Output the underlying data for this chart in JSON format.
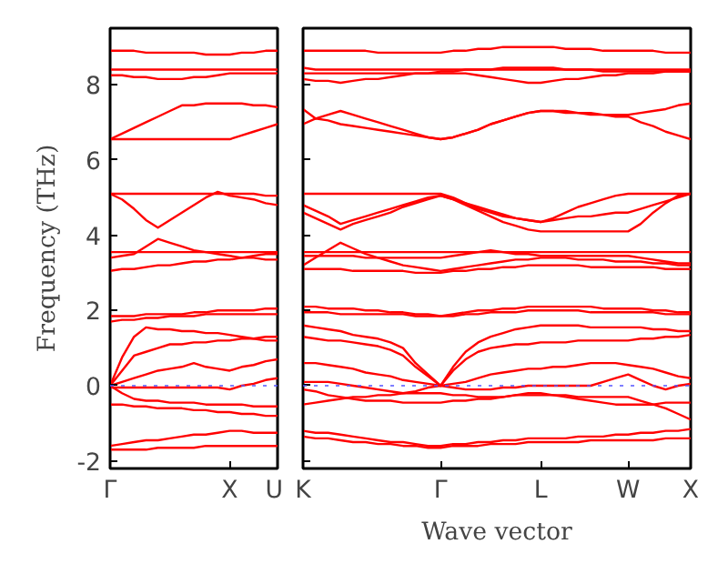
{
  "chart_data": [
    {
      "type": "line",
      "ylabel": "Frequency (THz)",
      "categories": [
        "Γ",
        null,
        null,
        null,
        null,
        null,
        null,
        null,
        null,
        null,
        "X",
        null,
        null,
        null,
        "U"
      ],
      "ylim": [
        -2.2,
        9.5
      ],
      "yticks": [
        -2,
        0,
        2,
        4,
        6,
        8
      ],
      "line_style": "solid",
      "ref_lines": [
        {
          "axis": "y",
          "value": 0,
          "color": "#5555ff",
          "line_style": "dotted"
        }
      ],
      "series": [
        {
          "color": "#ff0000",
          "values": [
            8.9,
            8.9,
            8.9,
            8.85,
            8.85,
            8.85,
            8.85,
            8.85,
            8.8,
            8.8,
            8.8,
            8.85,
            8.85,
            8.9,
            8.9
          ]
        },
        {
          "color": "#ff0000",
          "values": [
            8.4,
            8.4,
            8.4,
            8.4,
            8.4,
            8.4,
            8.4,
            8.4,
            8.4,
            8.4,
            8.4,
            8.4,
            8.4,
            8.4,
            8.4
          ]
        },
        {
          "color": "#ff0000",
          "values": [
            8.25,
            8.25,
            8.2,
            8.2,
            8.15,
            8.15,
            8.15,
            8.2,
            8.2,
            8.25,
            8.3,
            8.3,
            8.3,
            8.3,
            8.3
          ]
        },
        {
          "color": "#ff0000",
          "values": [
            6.55,
            6.7,
            6.85,
            7.0,
            7.15,
            7.3,
            7.45,
            7.45,
            7.5,
            7.5,
            7.5,
            7.5,
            7.45,
            7.45,
            7.4
          ]
        },
        {
          "color": "#ff0000",
          "values": [
            6.55,
            6.55,
            6.55,
            6.55,
            6.55,
            6.55,
            6.55,
            6.55,
            6.55,
            6.55,
            6.55,
            6.65,
            6.75,
            6.85,
            6.95
          ]
        },
        {
          "color": "#ff0000",
          "values": [
            5.1,
            5.1,
            5.1,
            5.1,
            5.1,
            5.1,
            5.1,
            5.1,
            5.1,
            5.1,
            5.1,
            5.1,
            5.1,
            5.05,
            5.05
          ]
        },
        {
          "color": "#ff0000",
          "values": [
            5.1,
            4.95,
            4.7,
            4.4,
            4.2,
            4.4,
            4.6,
            4.8,
            5.0,
            5.15,
            5.05,
            5.0,
            4.95,
            4.85,
            4.8
          ]
        },
        {
          "color": "#ff0000",
          "values": [
            3.55,
            3.55,
            3.55,
            3.55,
            3.55,
            3.55,
            3.55,
            3.55,
            3.55,
            3.55,
            3.55,
            3.55,
            3.55,
            3.55,
            3.55
          ]
        },
        {
          "color": "#ff0000",
          "values": [
            3.4,
            3.45,
            3.5,
            3.7,
            3.9,
            3.8,
            3.7,
            3.6,
            3.55,
            3.5,
            3.45,
            3.4,
            3.4,
            3.35,
            3.35
          ]
        },
        {
          "color": "#ff0000",
          "values": [
            3.05,
            3.1,
            3.1,
            3.15,
            3.2,
            3.2,
            3.25,
            3.3,
            3.3,
            3.35,
            3.35,
            3.4,
            3.45,
            3.5,
            3.5
          ]
        },
        {
          "color": "#ff0000",
          "values": [
            1.7,
            1.75,
            1.75,
            1.8,
            1.8,
            1.85,
            1.85,
            1.85,
            1.9,
            1.9,
            1.9,
            1.9,
            1.9,
            1.9,
            1.9
          ]
        },
        {
          "color": "#ff0000",
          "values": [
            1.85,
            1.85,
            1.85,
            1.9,
            1.9,
            1.9,
            1.9,
            1.95,
            1.95,
            2.0,
            2.0,
            2.0,
            2.0,
            2.05,
            2.05
          ]
        },
        {
          "color": "#ff0000",
          "values": [
            0,
            0.75,
            1.3,
            1.55,
            1.5,
            1.5,
            1.45,
            1.45,
            1.4,
            1.4,
            1.35,
            1.3,
            1.25,
            1.2,
            1.2
          ]
        },
        {
          "color": "#ff0000",
          "values": [
            0,
            0.4,
            0.8,
            0.9,
            1.0,
            1.1,
            1.1,
            1.15,
            1.15,
            1.2,
            1.2,
            1.25,
            1.25,
            1.3,
            1.3
          ]
        },
        {
          "color": "#ff0000",
          "values": [
            0,
            0.1,
            0.2,
            0.3,
            0.4,
            0.45,
            0.5,
            0.6,
            0.5,
            0.45,
            0.4,
            0.5,
            0.55,
            0.65,
            0.7
          ]
        },
        {
          "color": "#ff0000",
          "values": [
            -0.05,
            -0.05,
            -0.05,
            -0.05,
            -0.05,
            -0.05,
            -0.05,
            -0.05,
            -0.05,
            -0.05,
            -0.1,
            0,
            0.05,
            0.15,
            0.2
          ]
        },
        {
          "color": "#ff0000",
          "values": [
            0,
            -0.2,
            -0.35,
            -0.4,
            -0.4,
            -0.45,
            -0.45,
            -0.45,
            -0.5,
            -0.5,
            -0.5,
            -0.5,
            -0.55,
            -0.55,
            -0.55
          ]
        },
        {
          "color": "#ff0000",
          "values": [
            -0.5,
            -0.5,
            -0.55,
            -0.55,
            -0.6,
            -0.6,
            -0.6,
            -0.65,
            -0.65,
            -0.7,
            -0.7,
            -0.75,
            -0.75,
            -0.8,
            -0.8
          ]
        },
        {
          "color": "#ff0000",
          "values": [
            -1.6,
            -1.55,
            -1.5,
            -1.45,
            -1.45,
            -1.4,
            -1.35,
            -1.3,
            -1.3,
            -1.25,
            -1.2,
            -1.2,
            -1.25,
            -1.25,
            -1.25
          ]
        },
        {
          "color": "#ff0000",
          "values": [
            -1.7,
            -1.7,
            -1.7,
            -1.7,
            -1.65,
            -1.65,
            -1.65,
            -1.65,
            -1.6,
            -1.6,
            -1.6,
            -1.6,
            -1.6,
            -1.6,
            -1.6
          ]
        }
      ]
    },
    {
      "type": "line",
      "xlabel": "Wave vector",
      "categories": [
        "K",
        null,
        null,
        null,
        null,
        null,
        null,
        null,
        null,
        null,
        null,
        "Γ",
        null,
        null,
        null,
        null,
        null,
        null,
        null,
        "L",
        null,
        null,
        null,
        null,
        null,
        null,
        "W",
        null,
        null,
        null,
        null,
        "X"
      ],
      "ylim": [
        -2.2,
        9.5
      ],
      "yticks": [
        -2,
        0,
        2,
        4,
        6,
        8
      ],
      "tick_labels": "x",
      "line_style": "solid",
      "ref_lines": [
        {
          "axis": "y",
          "value": 0,
          "color": "#5555ff",
          "line_style": "dotted"
        }
      ],
      "series": [
        {
          "color": "#ff0000",
          "values": [
            8.9,
            8.9,
            8.9,
            8.9,
            8.9,
            8.9,
            8.85,
            8.85,
            8.85,
            8.85,
            8.85,
            8.85,
            8.9,
            8.9,
            8.95,
            8.95,
            9.0,
            9.0,
            9.0,
            9.0,
            9.0,
            8.95,
            8.95,
            8.95,
            8.9,
            8.9,
            8.9,
            8.9,
            8.9,
            8.85,
            8.85,
            8.85
          ]
        },
        {
          "color": "#ff0000",
          "values": [
            8.45,
            8.4,
            8.4,
            8.4,
            8.4,
            8.4,
            8.4,
            8.4,
            8.4,
            8.4,
            8.4,
            8.4,
            8.4,
            8.4,
            8.4,
            8.4,
            8.4,
            8.4,
            8.4,
            8.4,
            8.4,
            8.4,
            8.4,
            8.4,
            8.4,
            8.4,
            8.4,
            8.4,
            8.4,
            8.4,
            8.4,
            8.4
          ]
        },
        {
          "color": "#ff0000",
          "values": [
            8.15,
            8.1,
            8.1,
            8.05,
            8.1,
            8.15,
            8.15,
            8.2,
            8.25,
            8.3,
            8.3,
            8.35,
            8.35,
            8.4,
            8.4,
            8.4,
            8.45,
            8.45,
            8.45,
            8.45,
            8.45,
            8.4,
            8.4,
            8.4,
            8.35,
            8.35,
            8.35,
            8.35,
            8.35,
            8.35,
            8.35,
            8.35
          ]
        },
        {
          "color": "#ff0000",
          "values": [
            8.3,
            8.3,
            8.3,
            8.3,
            8.3,
            8.3,
            8.3,
            8.3,
            8.3,
            8.3,
            8.3,
            8.3,
            8.3,
            8.3,
            8.25,
            8.2,
            8.15,
            8.1,
            8.05,
            8.05,
            8.1,
            8.15,
            8.15,
            8.2,
            8.25,
            8.25,
            8.3,
            8.3,
            8.3,
            8.35,
            8.35,
            8.35
          ]
        },
        {
          "color": "#ff0000",
          "values": [
            7.35,
            7.1,
            7.2,
            7.3,
            7.2,
            7.1,
            7.0,
            6.9,
            6.8,
            6.7,
            6.6,
            6.55,
            6.6,
            6.7,
            6.8,
            6.95,
            7.05,
            7.15,
            7.25,
            7.3,
            7.3,
            7.3,
            7.25,
            7.25,
            7.2,
            7.2,
            7.2,
            7.25,
            7.3,
            7.35,
            7.45,
            7.5
          ]
        },
        {
          "color": "#ff0000",
          "values": [
            6.95,
            7.1,
            7.05,
            6.95,
            6.9,
            6.85,
            6.8,
            6.75,
            6.7,
            6.65,
            6.6,
            6.55,
            6.6,
            6.7,
            6.8,
            6.95,
            7.05,
            7.15,
            7.25,
            7.3,
            7.3,
            7.25,
            7.25,
            7.2,
            7.2,
            7.15,
            7.15,
            7.0,
            6.9,
            6.75,
            6.65,
            6.55
          ]
        },
        {
          "color": "#ff0000",
          "values": [
            5.1,
            5.1,
            5.1,
            5.1,
            5.1,
            5.1,
            5.1,
            5.1,
            5.1,
            5.1,
            5.1,
            5.1,
            5.0,
            4.85,
            4.7,
            4.6,
            4.5,
            4.45,
            4.4,
            4.35,
            4.45,
            4.6,
            4.75,
            4.85,
            4.95,
            5.05,
            5.1,
            5.1,
            5.1,
            5.1,
            5.1,
            5.1
          ]
        },
        {
          "color": "#ff0000",
          "values": [
            4.8,
            4.65,
            4.5,
            4.3,
            4.4,
            4.5,
            4.6,
            4.7,
            4.8,
            4.9,
            5.0,
            5.05,
            4.95,
            4.8,
            4.65,
            4.5,
            4.35,
            4.25,
            4.15,
            4.1,
            4.1,
            4.1,
            4.1,
            4.1,
            4.1,
            4.1,
            4.1,
            4.3,
            4.6,
            4.85,
            5.05,
            5.1
          ]
        },
        {
          "color": "#ff0000",
          "values": [
            4.6,
            4.45,
            4.3,
            4.15,
            4.3,
            4.4,
            4.5,
            4.6,
            4.75,
            4.85,
            4.95,
            5.05,
            4.95,
            4.85,
            4.75,
            4.65,
            4.55,
            4.45,
            4.4,
            4.35,
            4.4,
            4.45,
            4.5,
            4.5,
            4.55,
            4.6,
            4.6,
            4.7,
            4.8,
            4.9,
            5.0,
            5.1
          ]
        },
        {
          "color": "#ff0000",
          "values": [
            3.55,
            3.55,
            3.55,
            3.55,
            3.55,
            3.55,
            3.55,
            3.55,
            3.55,
            3.55,
            3.55,
            3.55,
            3.55,
            3.55,
            3.55,
            3.55,
            3.55,
            3.55,
            3.55,
            3.55,
            3.55,
            3.55,
            3.55,
            3.55,
            3.55,
            3.55,
            3.55,
            3.55,
            3.55,
            3.55,
            3.55,
            3.55
          ]
        },
        {
          "color": "#ff0000",
          "values": [
            3.45,
            3.45,
            3.45,
            3.45,
            3.45,
            3.4,
            3.4,
            3.4,
            3.4,
            3.4,
            3.4,
            3.4,
            3.45,
            3.5,
            3.55,
            3.6,
            3.55,
            3.5,
            3.5,
            3.45,
            3.45,
            3.45,
            3.45,
            3.45,
            3.45,
            3.45,
            3.45,
            3.4,
            3.35,
            3.3,
            3.25,
            3.25
          ]
        },
        {
          "color": "#ff0000",
          "values": [
            3.2,
            3.4,
            3.6,
            3.8,
            3.65,
            3.5,
            3.4,
            3.3,
            3.2,
            3.15,
            3.1,
            3.05,
            3.1,
            3.15,
            3.2,
            3.25,
            3.3,
            3.35,
            3.35,
            3.4,
            3.4,
            3.4,
            3.35,
            3.35,
            3.35,
            3.3,
            3.3,
            3.3,
            3.25,
            3.25,
            3.2,
            3.2
          ]
        },
        {
          "color": "#ff0000",
          "values": [
            3.1,
            3.1,
            3.1,
            3.1,
            3.05,
            3.05,
            3.05,
            3.05,
            3.05,
            3.0,
            3.0,
            3.0,
            3.05,
            3.05,
            3.1,
            3.1,
            3.15,
            3.15,
            3.2,
            3.2,
            3.2,
            3.2,
            3.2,
            3.15,
            3.15,
            3.15,
            3.15,
            3.15,
            3.15,
            3.1,
            3.1,
            3.1
          ]
        },
        {
          "color": "#ff0000",
          "values": [
            2.1,
            2.1,
            2.05,
            2.05,
            2.05,
            2.0,
            2.0,
            1.95,
            1.95,
            1.9,
            1.9,
            1.85,
            1.9,
            1.95,
            2.0,
            2.0,
            2.05,
            2.05,
            2.1,
            2.1,
            2.1,
            2.1,
            2.1,
            2.1,
            2.05,
            2.05,
            2.05,
            2.05,
            2.0,
            2.0,
            1.95,
            1.95
          ]
        },
        {
          "color": "#ff0000",
          "values": [
            1.95,
            1.95,
            1.95,
            1.9,
            1.9,
            1.9,
            1.9,
            1.9,
            1.9,
            1.85,
            1.85,
            1.85,
            1.85,
            1.9,
            1.9,
            1.95,
            1.95,
            1.95,
            2.0,
            2.0,
            2.0,
            2.0,
            2.0,
            1.95,
            1.95,
            1.95,
            1.95,
            1.95,
            1.95,
            1.9,
            1.9,
            1.9
          ]
        },
        {
          "color": "#ff0000",
          "values": [
            1.6,
            1.55,
            1.5,
            1.45,
            1.35,
            1.3,
            1.25,
            1.15,
            1.0,
            0.6,
            0.3,
            0,
            0.5,
            0.9,
            1.15,
            1.3,
            1.4,
            1.5,
            1.55,
            1.6,
            1.6,
            1.6,
            1.6,
            1.55,
            1.55,
            1.55,
            1.55,
            1.55,
            1.5,
            1.5,
            1.45,
            1.45
          ]
        },
        {
          "color": "#ff0000",
          "values": [
            1.3,
            1.25,
            1.2,
            1.2,
            1.15,
            1.1,
            1.05,
            0.95,
            0.8,
            0.5,
            0.25,
            0,
            0.4,
            0.7,
            0.9,
            1.0,
            1.05,
            1.1,
            1.1,
            1.15,
            1.15,
            1.15,
            1.2,
            1.2,
            1.2,
            1.2,
            1.2,
            1.25,
            1.25,
            1.3,
            1.3,
            1.35
          ]
        },
        {
          "color": "#ff0000",
          "values": [
            0.6,
            0.6,
            0.55,
            0.5,
            0.45,
            0.35,
            0.3,
            0.25,
            0.15,
            0.1,
            0.05,
            0,
            0.05,
            0.1,
            0.2,
            0.3,
            0.35,
            0.4,
            0.45,
            0.45,
            0.5,
            0.5,
            0.55,
            0.6,
            0.6,
            0.6,
            0.55,
            0.5,
            0.45,
            0.35,
            0.25,
            0.2
          ]
        },
        {
          "color": "#ff0000",
          "values": [
            0.1,
            0.1,
            0.1,
            0.05,
            0.0,
            -0.05,
            -0.1,
            -0.15,
            -0.2,
            -0.15,
            -0.05,
            0,
            -0.05,
            -0.1,
            -0.1,
            -0.1,
            -0.05,
            -0.05,
            0,
            0,
            0,
            0,
            0,
            0,
            0.1,
            0.2,
            0.3,
            0.15,
            0,
            -0.1,
            0,
            0.05
          ]
        },
        {
          "color": "#ff0000",
          "values": [
            -0.5,
            -0.45,
            -0.4,
            -0.35,
            -0.3,
            -0.3,
            -0.25,
            -0.25,
            -0.2,
            -0.2,
            -0.2,
            -0.2,
            -0.25,
            -0.25,
            -0.3,
            -0.3,
            -0.3,
            -0.25,
            -0.25,
            -0.25,
            -0.25,
            -0.25,
            -0.3,
            -0.3,
            -0.3,
            -0.3,
            -0.3,
            -0.4,
            -0.5,
            -0.6,
            -0.75,
            -0.9
          ]
        },
        {
          "color": "#ff0000",
          "values": [
            -0.1,
            -0.15,
            -0.25,
            -0.3,
            -0.35,
            -0.4,
            -0.4,
            -0.4,
            -0.45,
            -0.45,
            -0.45,
            -0.45,
            -0.4,
            -0.4,
            -0.35,
            -0.35,
            -0.3,
            -0.25,
            -0.2,
            -0.2,
            -0.25,
            -0.3,
            -0.35,
            -0.4,
            -0.45,
            -0.5,
            -0.5,
            -0.5,
            -0.5,
            -0.45,
            -0.45,
            -0.45
          ]
        },
        {
          "color": "#ff0000",
          "values": [
            -1.2,
            -1.25,
            -1.25,
            -1.3,
            -1.35,
            -1.4,
            -1.45,
            -1.5,
            -1.5,
            -1.55,
            -1.6,
            -1.6,
            -1.55,
            -1.55,
            -1.5,
            -1.5,
            -1.45,
            -1.45,
            -1.4,
            -1.4,
            -1.4,
            -1.4,
            -1.35,
            -1.35,
            -1.35,
            -1.3,
            -1.3,
            -1.25,
            -1.25,
            -1.2,
            -1.2,
            -1.15
          ]
        },
        {
          "color": "#ff0000",
          "values": [
            -1.35,
            -1.4,
            -1.4,
            -1.45,
            -1.5,
            -1.5,
            -1.55,
            -1.55,
            -1.6,
            -1.6,
            -1.65,
            -1.65,
            -1.6,
            -1.6,
            -1.6,
            -1.55,
            -1.55,
            -1.55,
            -1.5,
            -1.5,
            -1.5,
            -1.5,
            -1.5,
            -1.45,
            -1.45,
            -1.45,
            -1.45,
            -1.45,
            -1.45,
            -1.4,
            -1.4,
            -1.4
          ]
        }
      ]
    }
  ]
}
